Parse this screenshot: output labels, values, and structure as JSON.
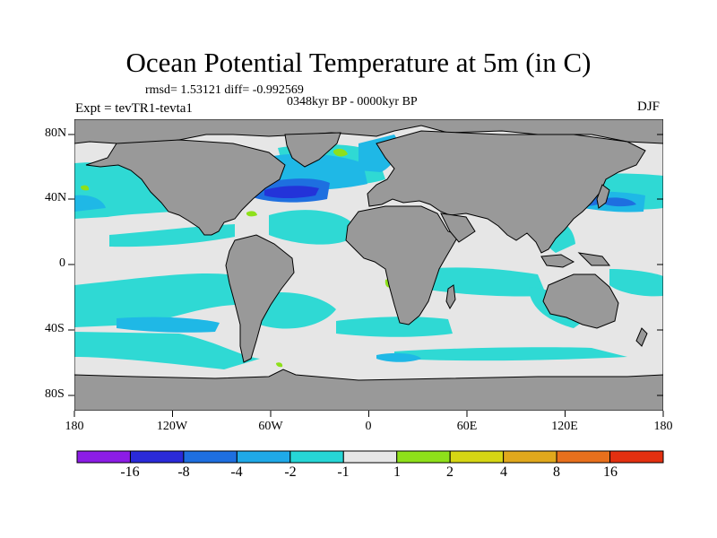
{
  "map": {
    "title": "Ocean Potential Temperature at 5m (in C)",
    "stats_text": "rmsd= 1.53121 diff= -0.992569",
    "period_text": "0348kyr BP - 0000kyr BP",
    "experiment_text": "Expt = tevTR1-tevta1",
    "season": "DJF",
    "lat_ticks": [
      "80N",
      "40N",
      "0",
      "40S",
      "80S"
    ],
    "lon_ticks": [
      "180",
      "120W",
      "60W",
      "0",
      "60E",
      "120E",
      "180"
    ],
    "colors": {
      "land": "#999999",
      "background_ocean": "#e6e6e6",
      "negative_1_to_2": "#2fd9d4",
      "negative_2_to_4": "#1fb8e6",
      "negative_4_to_8": "#1e6fe0",
      "negative_8_to_16": "#2333d9"
    }
  },
  "colorbar": {
    "labels": [
      "-16",
      "-8",
      "-4",
      "-2",
      "-1",
      "1",
      "2",
      "4",
      "8",
      "16"
    ],
    "colors": [
      "#8c1ce6",
      "#2a2ad9",
      "#1e6fe0",
      "#1fa9e8",
      "#26d6d6",
      "#e6e6e6",
      "#8ee01a",
      "#d6d614",
      "#e0a81c",
      "#e8701c",
      "#e33010"
    ]
  }
}
